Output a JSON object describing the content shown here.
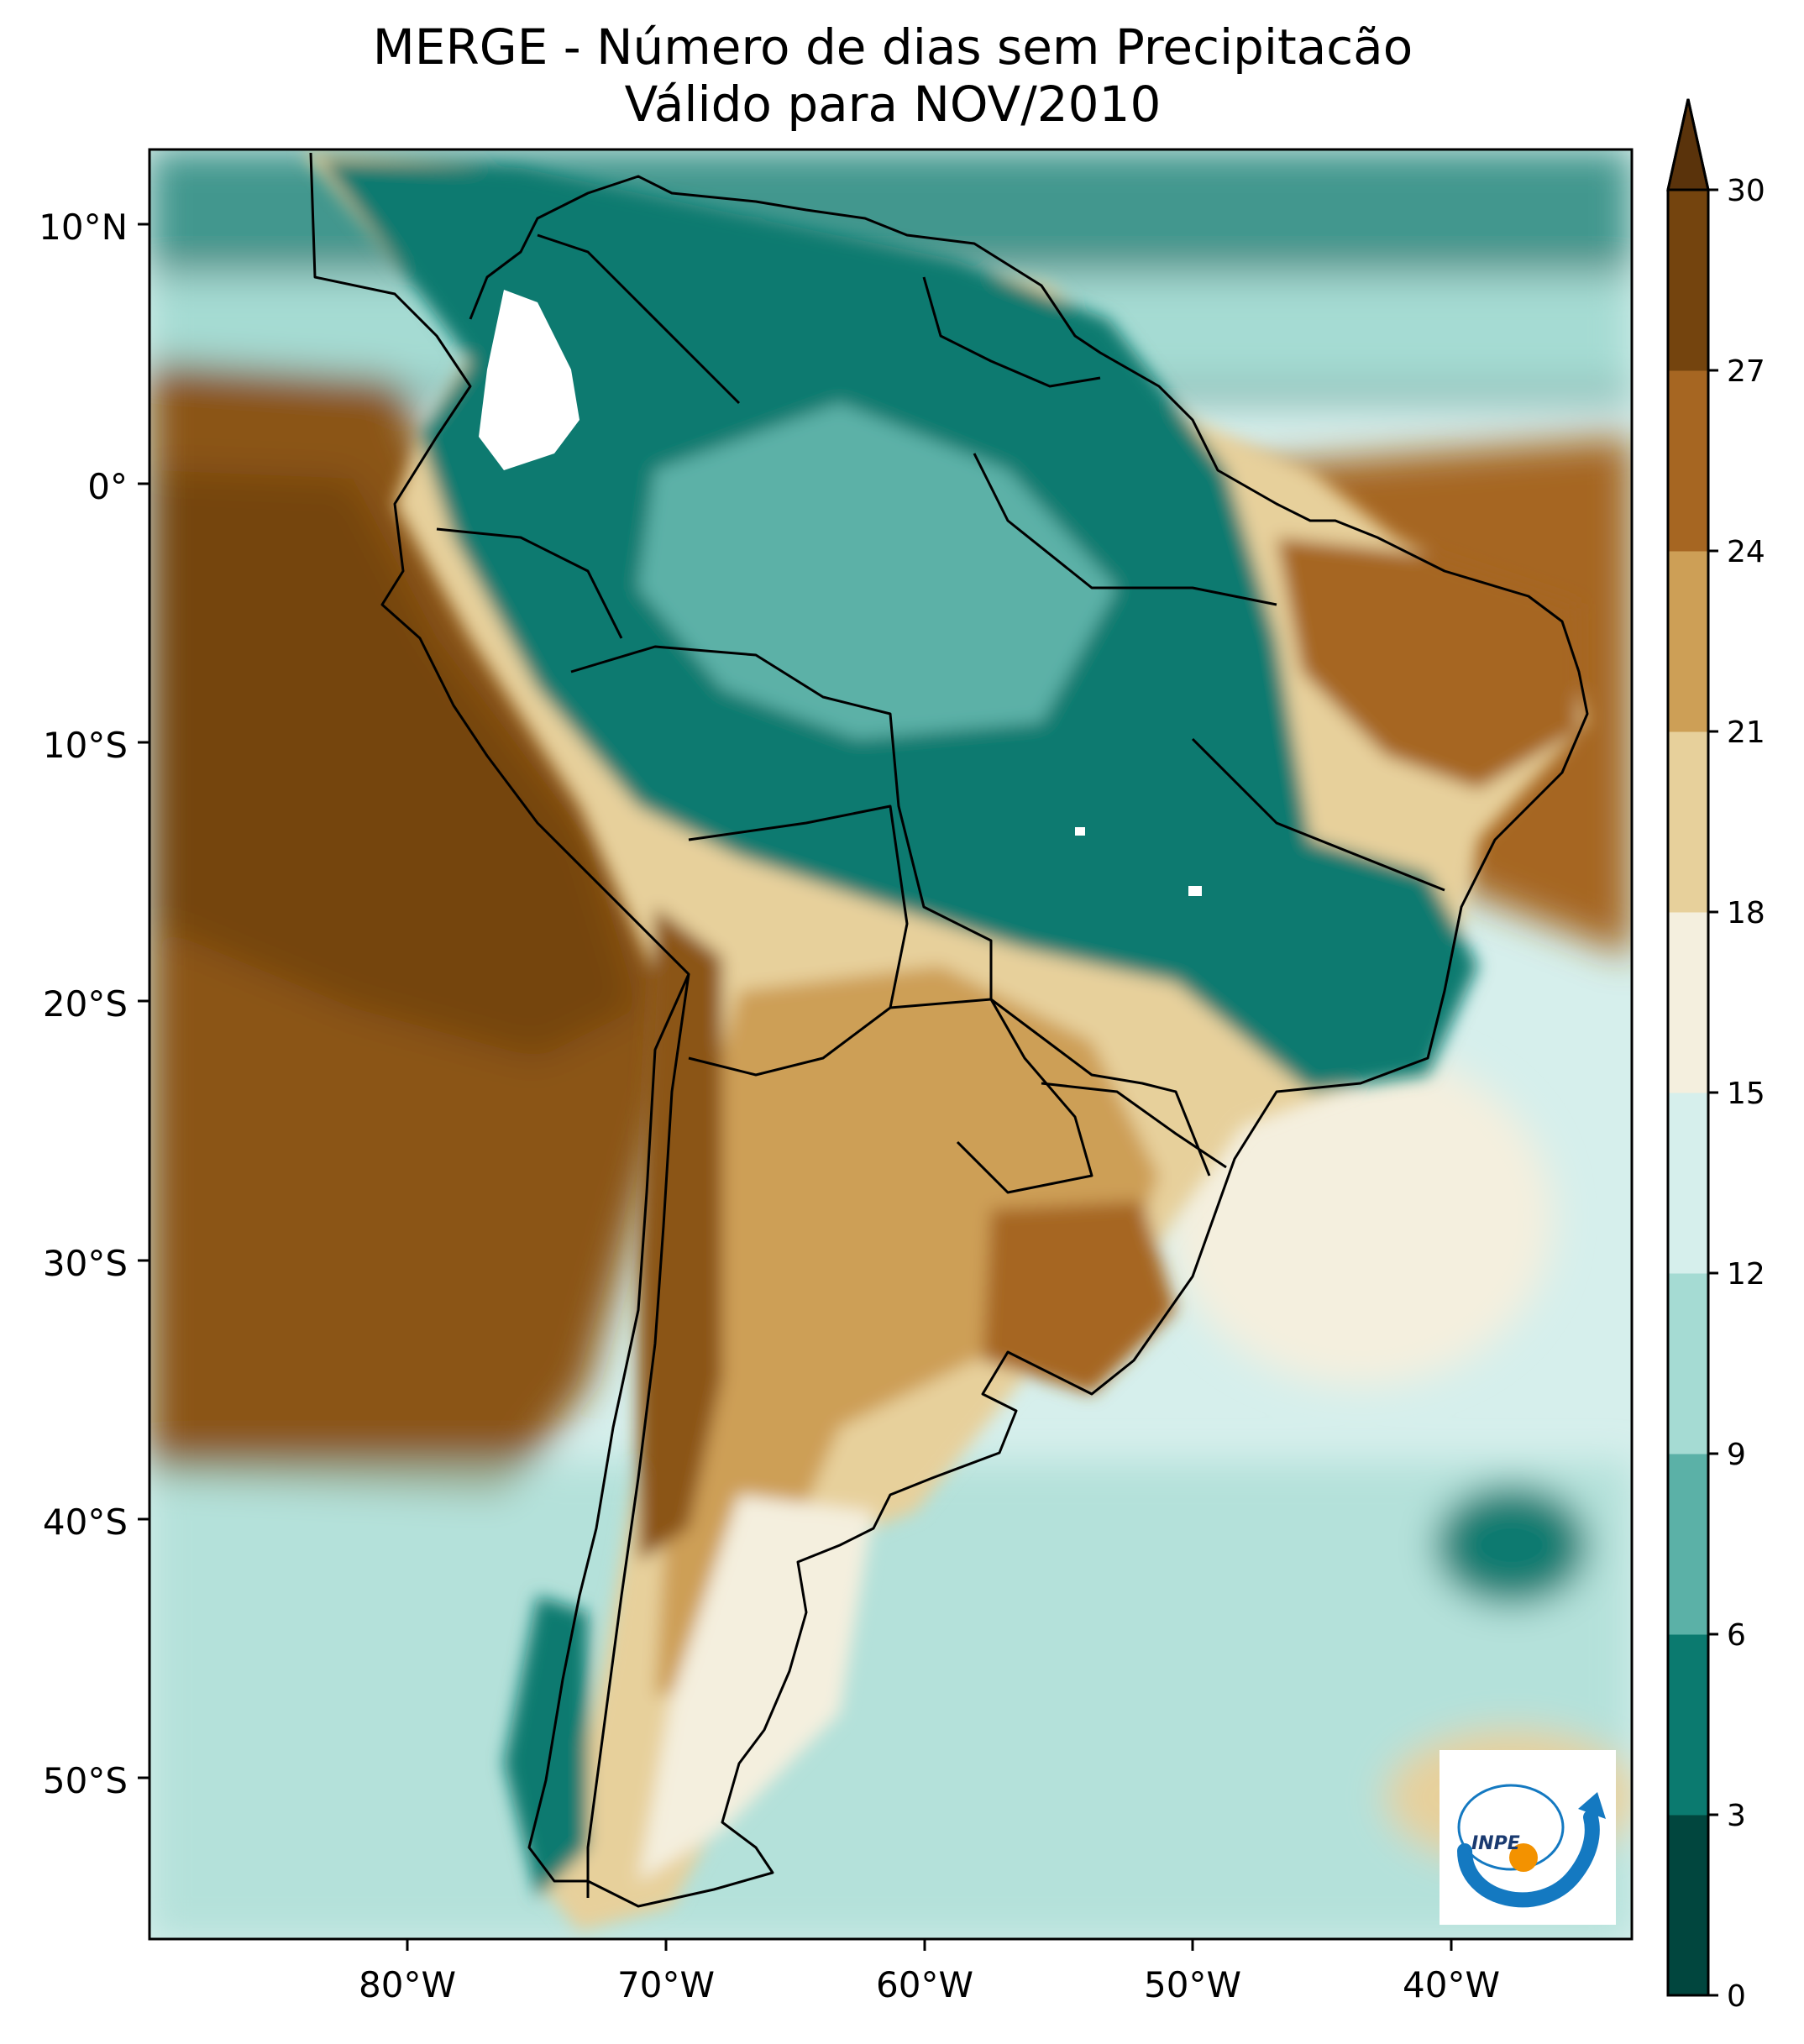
{
  "title": {
    "line1": "MERGE - Número de dias sem Precipitacão",
    "line2": "Válido para NOV/2010"
  },
  "axes": {
    "lat_ticks": [
      "10°N",
      "0°",
      "10°S",
      "20°S",
      "30°S",
      "40°S",
      "50°S"
    ],
    "lon_ticks": [
      "80°W",
      "70°W",
      "60°W",
      "50°W",
      "40°W"
    ]
  },
  "colorbar": {
    "ticks": [
      "0",
      "3",
      "6",
      "9",
      "12",
      "15",
      "18",
      "21",
      "24",
      "27",
      "30"
    ],
    "colors": [
      "#01463e",
      "#0b7a6f",
      "#5bb1a7",
      "#a5dbd3",
      "#d6efec",
      "#f4efde",
      "#e7d09b",
      "#cd9f56",
      "#a66622",
      "#74440e"
    ],
    "extend_max_color": "#5a330b"
  },
  "colors": {
    "ocean_dry": "#8b5413",
    "ocean_wet": "#a5dbd3",
    "land_wet": "#0b7a6f",
    "land_dry": "#e7d09b",
    "border": "#000000"
  },
  "logo": {
    "text": "INPE",
    "arc_color": "#1479c1",
    "dot_color": "#f39200"
  }
}
